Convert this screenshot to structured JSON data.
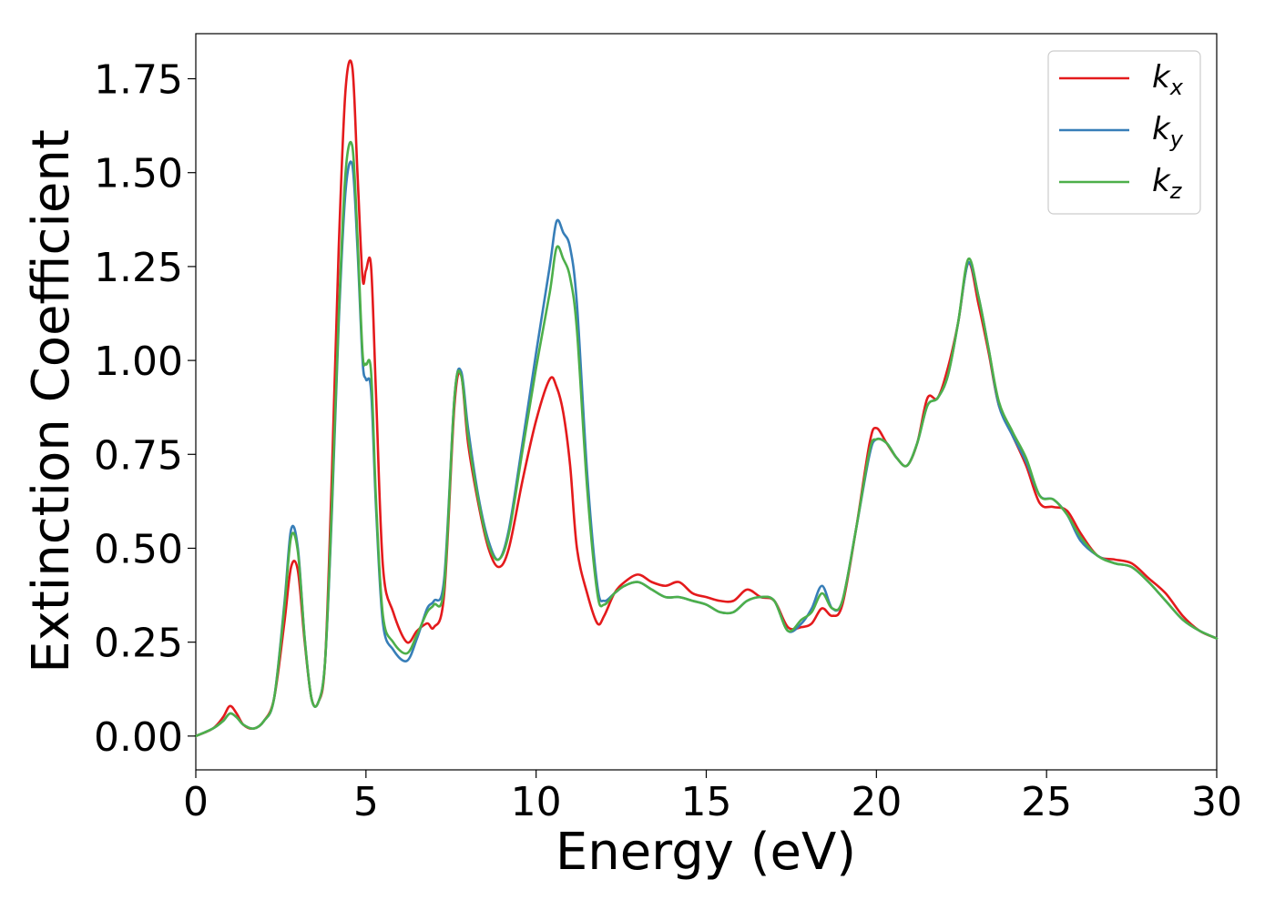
{
  "chart_data": {
    "type": "line",
    "xlabel": "Energy (eV)",
    "ylabel": "Extinction Coefficient",
    "xlim": [
      0,
      30
    ],
    "ylim": [
      -0.09,
      1.87
    ],
    "xticks": [
      0,
      5,
      10,
      15,
      20,
      25,
      30
    ],
    "xtick_labels": [
      "0",
      "5",
      "10",
      "15",
      "20",
      "25",
      "30"
    ],
    "yticks": [
      0.0,
      0.25,
      0.5,
      0.75,
      1.0,
      1.25,
      1.5,
      1.75
    ],
    "ytick_labels": [
      "0.00",
      "0.25",
      "0.50",
      "0.75",
      "1.00",
      "1.25",
      "1.50",
      "1.75"
    ],
    "grid": false,
    "legend_position": "top-right",
    "series": [
      {
        "name": "k_x",
        "label_main": "k",
        "label_sub": "x",
        "color": "#e41a1c",
        "x": [
          0,
          0.5,
          0.8,
          1.0,
          1.2,
          1.4,
          1.7,
          2.0,
          2.3,
          2.6,
          2.8,
          3.0,
          3.2,
          3.4,
          3.6,
          3.8,
          4.0,
          4.2,
          4.4,
          4.6,
          4.75,
          4.9,
          5.0,
          5.15,
          5.3,
          5.5,
          5.8,
          6.2,
          6.5,
          6.8,
          7.0,
          7.3,
          7.6,
          7.8,
          8.0,
          8.3,
          8.6,
          8.9,
          9.2,
          9.6,
          10.0,
          10.4,
          10.6,
          10.8,
          11.0,
          11.2,
          11.5,
          11.8,
          12.0,
          12.3,
          12.6,
          13.0,
          13.4,
          13.8,
          14.2,
          14.6,
          15.0,
          15.4,
          15.8,
          16.2,
          16.6,
          17.0,
          17.4,
          17.8,
          18.1,
          18.4,
          18.7,
          19.0,
          19.4,
          19.8,
          20.0,
          20.3,
          20.6,
          20.9,
          21.2,
          21.5,
          21.8,
          22.1,
          22.4,
          22.7,
          23.0,
          23.3,
          23.6,
          24.0,
          24.4,
          24.8,
          25.2,
          25.6,
          26.0,
          26.5,
          27.0,
          27.5,
          28.0,
          28.5,
          29.0,
          29.5,
          30.0
        ],
        "values": [
          0.0,
          0.02,
          0.05,
          0.08,
          0.06,
          0.03,
          0.02,
          0.04,
          0.1,
          0.3,
          0.45,
          0.44,
          0.25,
          0.1,
          0.09,
          0.2,
          0.7,
          1.3,
          1.72,
          1.78,
          1.5,
          1.22,
          1.24,
          1.25,
          0.9,
          0.45,
          0.33,
          0.25,
          0.28,
          0.3,
          0.29,
          0.38,
          0.88,
          0.96,
          0.78,
          0.62,
          0.5,
          0.45,
          0.5,
          0.68,
          0.84,
          0.95,
          0.93,
          0.86,
          0.72,
          0.5,
          0.38,
          0.3,
          0.32,
          0.38,
          0.41,
          0.43,
          0.41,
          0.4,
          0.41,
          0.38,
          0.37,
          0.36,
          0.36,
          0.39,
          0.37,
          0.36,
          0.29,
          0.29,
          0.3,
          0.34,
          0.32,
          0.35,
          0.55,
          0.78,
          0.82,
          0.78,
          0.74,
          0.72,
          0.78,
          0.9,
          0.9,
          0.98,
          1.1,
          1.26,
          1.15,
          1.02,
          0.88,
          0.8,
          0.72,
          0.62,
          0.61,
          0.6,
          0.54,
          0.48,
          0.47,
          0.46,
          0.42,
          0.38,
          0.32,
          0.28,
          0.26
        ]
      },
      {
        "name": "k_y",
        "label_main": "k",
        "label_sub": "y",
        "color": "#377eb8",
        "x": [
          0,
          0.5,
          0.8,
          1.0,
          1.2,
          1.4,
          1.7,
          2.0,
          2.3,
          2.6,
          2.8,
          3.0,
          3.2,
          3.4,
          3.6,
          3.8,
          4.0,
          4.2,
          4.4,
          4.6,
          4.75,
          4.9,
          5.0,
          5.15,
          5.3,
          5.5,
          5.8,
          6.2,
          6.5,
          6.8,
          7.0,
          7.3,
          7.6,
          7.8,
          8.0,
          8.3,
          8.6,
          8.9,
          9.2,
          9.6,
          10.0,
          10.4,
          10.6,
          10.8,
          11.0,
          11.2,
          11.5,
          11.8,
          12.0,
          12.3,
          12.6,
          13.0,
          13.4,
          13.8,
          14.2,
          14.6,
          15.0,
          15.4,
          15.8,
          16.2,
          16.6,
          17.0,
          17.4,
          17.8,
          18.1,
          18.4,
          18.7,
          19.0,
          19.4,
          19.8,
          20.0,
          20.3,
          20.6,
          20.9,
          21.2,
          21.5,
          21.8,
          22.1,
          22.4,
          22.7,
          23.0,
          23.3,
          23.6,
          24.0,
          24.4,
          24.8,
          25.2,
          25.6,
          26.0,
          26.5,
          27.0,
          27.5,
          28.0,
          28.5,
          29.0,
          29.5,
          30.0
        ],
        "values": [
          0.0,
          0.02,
          0.04,
          0.06,
          0.05,
          0.03,
          0.02,
          0.04,
          0.1,
          0.35,
          0.55,
          0.5,
          0.26,
          0.1,
          0.09,
          0.2,
          0.6,
          1.1,
          1.45,
          1.52,
          1.3,
          1.0,
          0.95,
          0.92,
          0.6,
          0.3,
          0.23,
          0.2,
          0.26,
          0.34,
          0.36,
          0.42,
          0.9,
          0.97,
          0.82,
          0.64,
          0.52,
          0.47,
          0.55,
          0.78,
          1.02,
          1.25,
          1.37,
          1.34,
          1.3,
          1.15,
          0.7,
          0.4,
          0.36,
          0.38,
          0.4,
          0.41,
          0.39,
          0.37,
          0.37,
          0.36,
          0.35,
          0.33,
          0.33,
          0.36,
          0.37,
          0.36,
          0.28,
          0.3,
          0.34,
          0.4,
          0.34,
          0.36,
          0.55,
          0.75,
          0.79,
          0.78,
          0.74,
          0.72,
          0.78,
          0.88,
          0.9,
          0.96,
          1.1,
          1.26,
          1.17,
          1.03,
          0.88,
          0.8,
          0.73,
          0.64,
          0.63,
          0.59,
          0.52,
          0.48,
          0.46,
          0.45,
          0.41,
          0.36,
          0.31,
          0.28,
          0.26
        ]
      },
      {
        "name": "k_z",
        "label_main": "k",
        "label_sub": "z",
        "color": "#4daf4a",
        "x": [
          0,
          0.5,
          0.8,
          1.0,
          1.2,
          1.4,
          1.7,
          2.0,
          2.3,
          2.6,
          2.8,
          3.0,
          3.2,
          3.4,
          3.6,
          3.8,
          4.0,
          4.2,
          4.4,
          4.6,
          4.75,
          4.9,
          5.0,
          5.15,
          5.3,
          5.5,
          5.8,
          6.2,
          6.5,
          6.8,
          7.0,
          7.3,
          7.6,
          7.8,
          8.0,
          8.3,
          8.6,
          8.9,
          9.2,
          9.6,
          10.0,
          10.4,
          10.6,
          10.8,
          11.0,
          11.2,
          11.5,
          11.8,
          12.0,
          12.3,
          12.6,
          13.0,
          13.4,
          13.8,
          14.2,
          14.6,
          15.0,
          15.4,
          15.8,
          16.2,
          16.6,
          17.0,
          17.4,
          17.8,
          18.1,
          18.4,
          18.7,
          19.0,
          19.4,
          19.8,
          20.0,
          20.3,
          20.6,
          20.9,
          21.2,
          21.5,
          21.8,
          22.1,
          22.4,
          22.7,
          23.0,
          23.3,
          23.6,
          24.0,
          24.4,
          24.8,
          25.2,
          25.6,
          26.0,
          26.5,
          27.0,
          27.5,
          28.0,
          28.5,
          29.0,
          29.5,
          30.0
        ],
        "values": [
          0.0,
          0.02,
          0.04,
          0.06,
          0.05,
          0.03,
          0.02,
          0.04,
          0.1,
          0.34,
          0.53,
          0.49,
          0.26,
          0.1,
          0.09,
          0.2,
          0.62,
          1.12,
          1.5,
          1.57,
          1.33,
          1.02,
          0.99,
          0.97,
          0.62,
          0.32,
          0.25,
          0.22,
          0.27,
          0.33,
          0.35,
          0.4,
          0.9,
          0.96,
          0.8,
          0.63,
          0.51,
          0.47,
          0.54,
          0.76,
          0.98,
          1.18,
          1.3,
          1.27,
          1.22,
          1.08,
          0.66,
          0.38,
          0.35,
          0.38,
          0.4,
          0.41,
          0.39,
          0.37,
          0.37,
          0.36,
          0.35,
          0.33,
          0.33,
          0.36,
          0.37,
          0.36,
          0.28,
          0.31,
          0.33,
          0.38,
          0.34,
          0.36,
          0.55,
          0.76,
          0.79,
          0.78,
          0.74,
          0.72,
          0.78,
          0.88,
          0.9,
          0.96,
          1.1,
          1.27,
          1.17,
          1.03,
          0.89,
          0.81,
          0.74,
          0.64,
          0.63,
          0.59,
          0.53,
          0.48,
          0.46,
          0.45,
          0.41,
          0.36,
          0.31,
          0.28,
          0.26
        ]
      }
    ]
  }
}
